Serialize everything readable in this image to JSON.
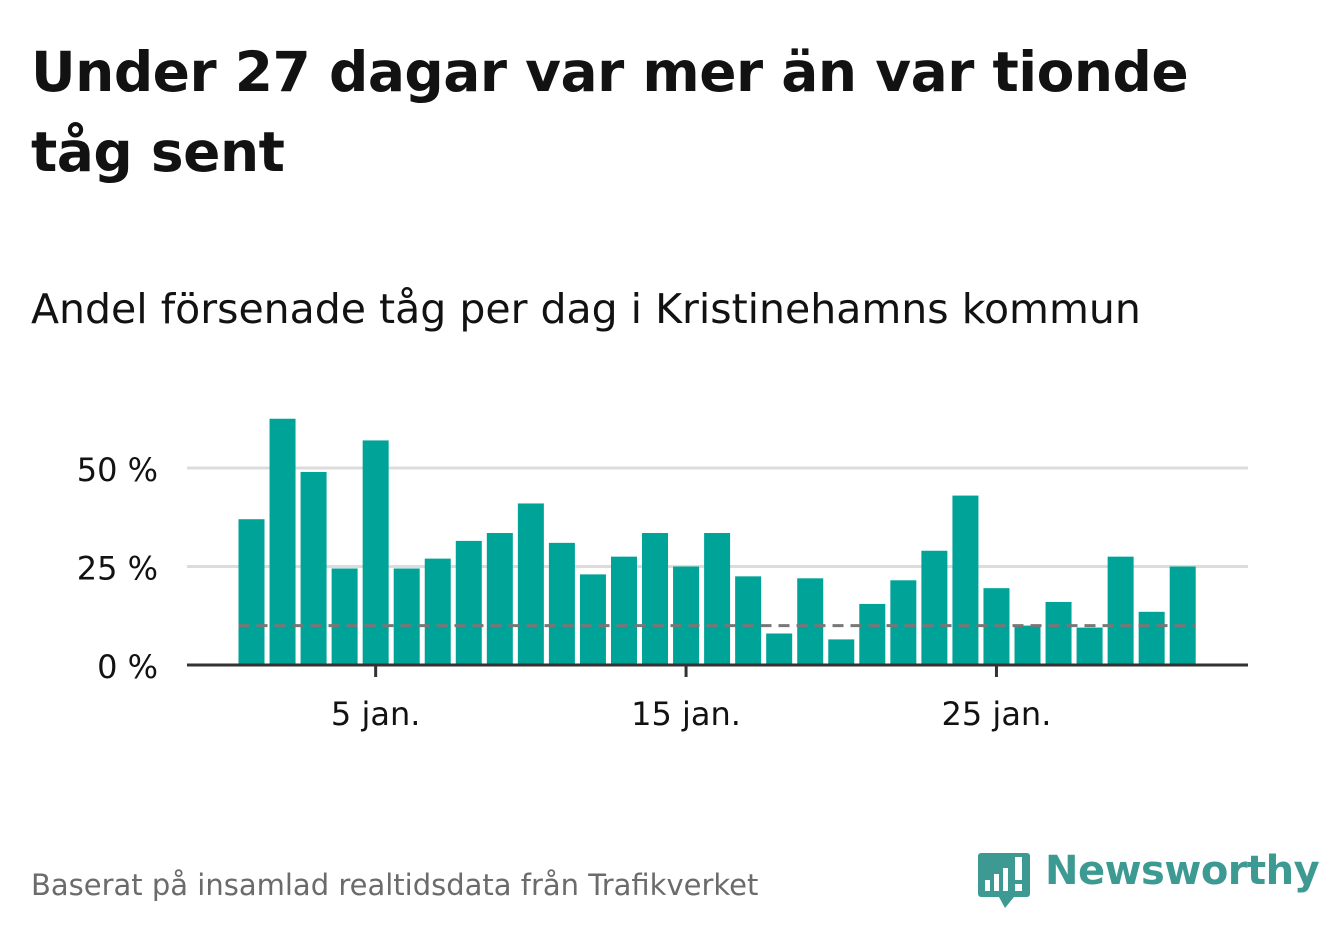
{
  "title": "Under 27 dagar var mer än var tionde tåg sent",
  "subtitle": "Andel försenade tåg per dag i Kristinehamns kommun",
  "footer": "Baserat på insamlad realtidsdata från Trafikverket",
  "brand": {
    "name": "Newsworthy",
    "logo_icon": "newsworthy-bar-chart-speech-bubble-icon",
    "color": "#3d9a92"
  },
  "colors": {
    "bar": "#00a398",
    "grid": "#dcdcdc",
    "axis": "#333333",
    "reference": "#777777",
    "text": "#121212",
    "muted": "#6b6b6b"
  },
  "chart_data": {
    "type": "bar",
    "x_unit": "day of January",
    "x": [
      1,
      2,
      3,
      4,
      5,
      6,
      7,
      8,
      9,
      10,
      11,
      12,
      13,
      14,
      15,
      16,
      17,
      18,
      19,
      20,
      21,
      22,
      23,
      24,
      25,
      26,
      27,
      28,
      29,
      30,
      31
    ],
    "values": [
      37,
      62.5,
      49,
      24.5,
      57,
      24.5,
      27,
      31.5,
      33.5,
      41,
      31,
      23,
      27.5,
      33.5,
      25,
      33.5,
      22.5,
      8,
      22,
      6.5,
      15.5,
      21.5,
      29,
      43,
      19.5,
      10,
      16,
      9.5,
      27.5,
      13.5,
      25
    ],
    "ylim": [
      0,
      62.5
    ],
    "yticks": [
      0,
      25,
      50
    ],
    "ytick_labels": [
      "0 %",
      "25 %",
      "50 %"
    ],
    "xticks": [
      5,
      15,
      25
    ],
    "xtick_labels": [
      "5 jan.",
      "15 jan.",
      "25 jan."
    ],
    "reference_line": 10,
    "grid": true,
    "xlabel": "",
    "ylabel": ""
  }
}
